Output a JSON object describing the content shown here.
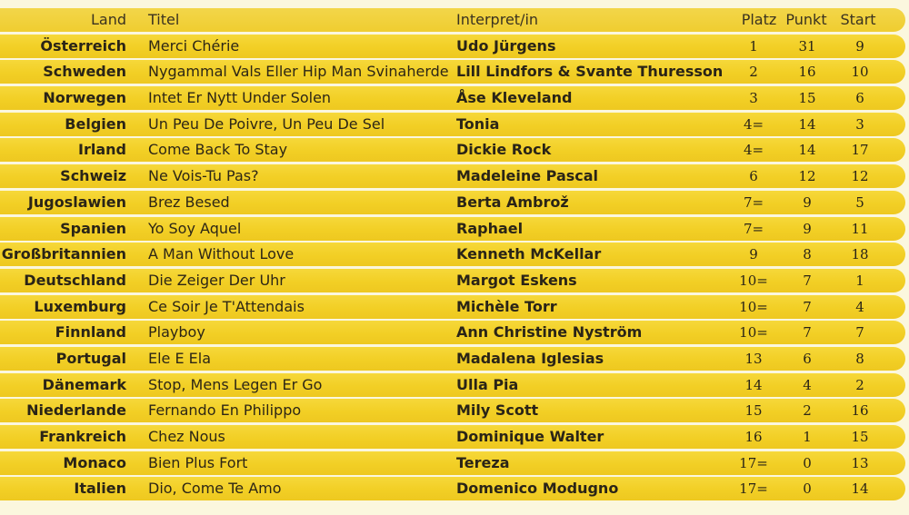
{
  "header": {
    "land": "Land",
    "titel": "Titel",
    "interpret": "Interpret/in",
    "platz": "Platz",
    "punkt": "Punkt",
    "start": "Start"
  },
  "rows": [
    {
      "land": "Österreich",
      "titel": "Merci Chérie",
      "interpret": "Udo Jürgens",
      "platz": "1",
      "punkt": "31",
      "start": "9"
    },
    {
      "land": "Schweden",
      "titel": "Nygammal Vals Eller Hip Man Svinaherde",
      "interpret": "Lill Lindfors & Svante Thuresson",
      "platz": "2",
      "punkt": "16",
      "start": "10"
    },
    {
      "land": "Norwegen",
      "titel": "Intet Er Nytt Under Solen",
      "interpret": "Åse Kleveland",
      "platz": "3",
      "punkt": "15",
      "start": "6"
    },
    {
      "land": "Belgien",
      "titel": "Un Peu De Poivre, Un Peu De Sel",
      "interpret": "Tonia",
      "platz": "4=",
      "punkt": "14",
      "start": "3"
    },
    {
      "land": "Irland",
      "titel": "Come Back To Stay",
      "interpret": "Dickie Rock",
      "platz": "4=",
      "punkt": "14",
      "start": "17"
    },
    {
      "land": "Schweiz",
      "titel": "Ne Vois-Tu Pas?",
      "interpret": "Madeleine Pascal",
      "platz": "6",
      "punkt": "12",
      "start": "12"
    },
    {
      "land": "Jugoslawien",
      "titel": "Brez Besed",
      "interpret": "Berta Ambrož",
      "platz": "7=",
      "punkt": "9",
      "start": "5"
    },
    {
      "land": "Spanien",
      "titel": "Yo Soy Aquel",
      "interpret": "Raphael",
      "platz": "7=",
      "punkt": "9",
      "start": "11"
    },
    {
      "land": "Großbritannien",
      "titel": "A Man Without Love",
      "interpret": "Kenneth McKellar",
      "platz": "9",
      "punkt": "8",
      "start": "18"
    },
    {
      "land": "Deutschland",
      "titel": "Die Zeiger Der Uhr",
      "interpret": "Margot Eskens",
      "platz": "10=",
      "punkt": "7",
      "start": "1"
    },
    {
      "land": "Luxemburg",
      "titel": "Ce Soir Je T'Attendais",
      "interpret": "Michèle Torr",
      "platz": "10=",
      "punkt": "7",
      "start": "4"
    },
    {
      "land": "Finnland",
      "titel": "Playboy",
      "interpret": "Ann Christine Nyström",
      "platz": "10=",
      "punkt": "7",
      "start": "7"
    },
    {
      "land": "Portugal",
      "titel": "Ele E Ela",
      "interpret": "Madalena Iglesias",
      "platz": "13",
      "punkt": "6",
      "start": "8"
    },
    {
      "land": "Dänemark",
      "titel": "Stop, Mens Legen Er Go",
      "interpret": "Ulla Pia",
      "platz": "14",
      "punkt": "4",
      "start": "2"
    },
    {
      "land": "Niederlande",
      "titel": "Fernando En Philippo",
      "interpret": "Mily Scott",
      "platz": "15",
      "punkt": "2",
      "start": "16"
    },
    {
      "land": "Frankreich",
      "titel": "Chez Nous",
      "interpret": "Dominique Walter",
      "platz": "16",
      "punkt": "1",
      "start": "15"
    },
    {
      "land": "Monaco",
      "titel": "Bien Plus Fort",
      "interpret": "Tereza",
      "platz": "17=",
      "punkt": "0",
      "start": "13"
    },
    {
      "land": "Italien",
      "titel": "Dio, Come Te Amo",
      "interpret": "Domenico Modugno",
      "platz": "17=",
      "punkt": "0",
      "start": "14"
    }
  ]
}
